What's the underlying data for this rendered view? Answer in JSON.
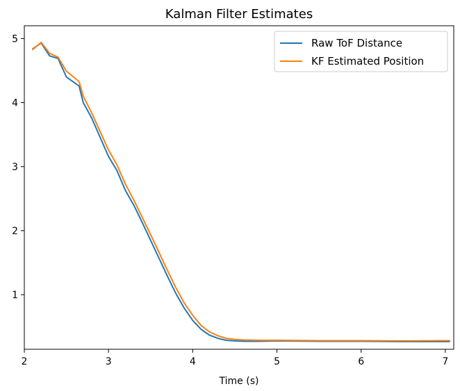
{
  "chart_data": {
    "type": "line",
    "title": "Kalman Filter Estimates",
    "xlabel": "Time (s)",
    "ylabel": "",
    "xlim": [
      2.0,
      7.1
    ],
    "ylim": [
      0.15,
      5.2
    ],
    "x_ticks": [
      2,
      3,
      4,
      5,
      6,
      7
    ],
    "y_ticks": [
      1,
      2,
      3,
      4,
      5
    ],
    "grid": false,
    "legend_position": "upper right",
    "series": [
      {
        "name": "Raw ToF Distance",
        "color": "#1f77b4",
        "x": [
          2.1,
          2.2,
          2.3,
          2.4,
          2.5,
          2.65,
          2.7,
          2.8,
          2.9,
          3.0,
          3.1,
          3.2,
          3.3,
          3.4,
          3.5,
          3.6,
          3.7,
          3.8,
          3.9,
          4.0,
          4.1,
          4.2,
          4.3,
          4.4,
          4.5,
          4.6,
          4.8,
          5.0,
          5.5,
          6.0,
          6.5,
          7.05
        ],
        "y": [
          4.84,
          4.93,
          4.73,
          4.69,
          4.4,
          4.26,
          4.0,
          3.76,
          3.46,
          3.16,
          2.94,
          2.63,
          2.4,
          2.13,
          1.85,
          1.57,
          1.29,
          1.02,
          0.79,
          0.6,
          0.46,
          0.37,
          0.32,
          0.29,
          0.28,
          0.275,
          0.275,
          0.28,
          0.275,
          0.275,
          0.27,
          0.27
        ]
      },
      {
        "name": "KF Estimated Position",
        "color": "#ff7f0e",
        "x": [
          2.1,
          2.2,
          2.3,
          2.4,
          2.5,
          2.65,
          2.7,
          2.8,
          2.9,
          3.0,
          3.1,
          3.2,
          3.3,
          3.4,
          3.5,
          3.6,
          3.7,
          3.8,
          3.9,
          4.0,
          4.1,
          4.2,
          4.3,
          4.4,
          4.5,
          4.6,
          4.8,
          5.0,
          5.5,
          6.0,
          6.5,
          7.05
        ],
        "y": [
          4.83,
          4.94,
          4.77,
          4.71,
          4.49,
          4.33,
          4.1,
          3.84,
          3.55,
          3.26,
          3.03,
          2.73,
          2.48,
          2.21,
          1.94,
          1.66,
          1.38,
          1.11,
          0.87,
          0.68,
          0.52,
          0.42,
          0.36,
          0.32,
          0.305,
          0.295,
          0.29,
          0.29,
          0.285,
          0.285,
          0.28,
          0.285
        ]
      }
    ]
  }
}
